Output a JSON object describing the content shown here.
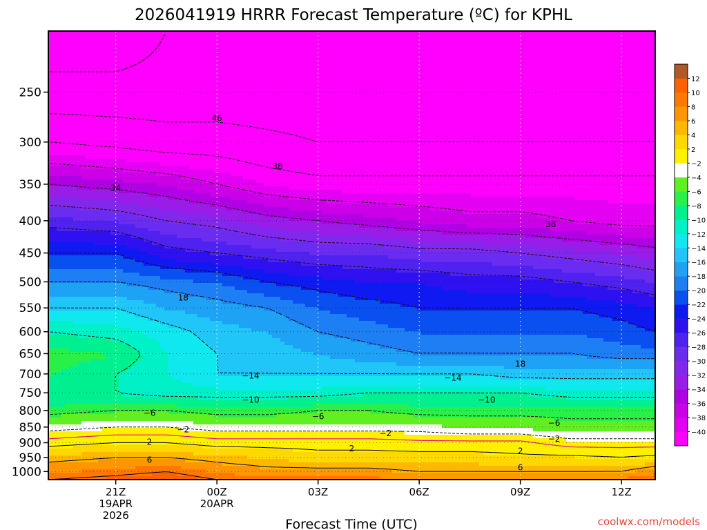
{
  "chart_data": {
    "type": "heatmap",
    "title": "2026041919 HRRR Forecast Temperature (ºC) for KPHL",
    "xlabel": "Forecast Time (UTC)",
    "ylabel": "",
    "credit": "coolwx.com/models",
    "x_ticks": [
      {
        "hour": 2,
        "lines": [
          "21Z",
          "19APR",
          "2026"
        ]
      },
      {
        "hour": 5,
        "lines": [
          "00Z",
          "20APR"
        ]
      },
      {
        "hour": 8,
        "lines": [
          "03Z"
        ]
      },
      {
        "hour": 11,
        "lines": [
          "06Z"
        ]
      },
      {
        "hour": 14,
        "lines": [
          "09Z"
        ]
      },
      {
        "hour": 17,
        "lines": [
          "12Z"
        ]
      }
    ],
    "x_range_hours": [
      0,
      18
    ],
    "y_ticks_hpa": [
      250,
      300,
      350,
      400,
      450,
      500,
      550,
      600,
      650,
      700,
      750,
      800,
      850,
      900,
      950,
      1000
    ],
    "y_range_hpa": [
      200,
      1030
    ],
    "y_scale": "log-pressure",
    "colorbar": {
      "unit": "ºC",
      "levels": [
        -40,
        -38,
        -36,
        -34,
        -32,
        -30,
        -28,
        -26,
        -24,
        -22,
        -20,
        -18,
        -16,
        -14,
        -12,
        -10,
        -8,
        -6,
        -4,
        -2,
        2,
        4,
        6,
        8,
        10,
        12
      ],
      "colors": [
        "#ff00ff",
        "#e400f2",
        "#cc00e8",
        "#b000e4",
        "#9a1ce8",
        "#8228ec",
        "#6a2cf0",
        "#4f22f0",
        "#2e10f0",
        "#0f1af2",
        "#0a50f0",
        "#1e7ef4",
        "#1ea2f6",
        "#20c6f8",
        "#10e8f0",
        "#00f0c8",
        "#00f090",
        "#28f048",
        "#60f020",
        "#ffffff",
        "#fff000",
        "#ffd800",
        "#ffb800",
        "#ff9600",
        "#ff7800",
        "#ff6000",
        "#b05a28"
      ]
    },
    "x_hours": [
      0,
      2,
      3.5,
      5,
      6.5,
      8,
      9.5,
      11,
      12.5,
      14,
      15.5,
      17,
      18
    ],
    "temperature_profiles": [
      {
        "p": 200,
        "t": [
          -52,
          -52,
          -50,
          -50,
          -50,
          -50,
          -50,
          -50,
          -50,
          -50,
          -50,
          -50,
          -50
        ]
      },
      {
        "p": 250,
        "t": [
          -49,
          -49,
          -49,
          -49,
          -49,
          -49,
          -49,
          -49,
          -49,
          -49,
          -49,
          -49,
          -49
        ]
      },
      {
        "p": 300,
        "t": [
          -42,
          -43,
          -44,
          -44,
          -45,
          -46,
          -46,
          -46,
          -46,
          -46,
          -46,
          -46,
          -46
        ]
      },
      {
        "p": 350,
        "t": [
          -34,
          -35,
          -36,
          -38,
          -40,
          -41,
          -41,
          -41,
          -41,
          -41,
          -41,
          -41,
          -41
        ]
      },
      {
        "p": 400,
        "t": [
          -27,
          -28,
          -30,
          -31,
          -33,
          -34,
          -35,
          -36,
          -37,
          -37,
          -38,
          -39,
          -39
        ]
      },
      {
        "p": 450,
        "t": [
          -22,
          -22,
          -25,
          -26,
          -27,
          -28,
          -28,
          -29,
          -29,
          -30,
          -31,
          -32,
          -33
        ]
      },
      {
        "p": 500,
        "t": [
          -18,
          -18,
          -19,
          -20,
          -22,
          -23,
          -24,
          -24,
          -25,
          -25,
          -26,
          -27,
          -28
        ]
      },
      {
        "p": 550,
        "t": [
          -14,
          -14,
          -16,
          -17,
          -18,
          -20,
          -21,
          -22,
          -22,
          -22,
          -22,
          -23,
          -24
        ]
      },
      {
        "p": 600,
        "t": [
          -10,
          -11,
          -13,
          -15,
          -16,
          -18,
          -19,
          -20,
          -20,
          -20,
          -20,
          -21,
          -22
        ]
      },
      {
        "p": 650,
        "t": [
          -7,
          -8,
          -12,
          -14,
          -15,
          -16,
          -17,
          -18,
          -18,
          -18,
          -18,
          -19,
          -19
        ]
      },
      {
        "p": 700,
        "t": [
          -8,
          -10,
          -12,
          -14,
          -14,
          -14,
          -14,
          -14,
          -14,
          -15,
          -15,
          -15,
          -15
        ]
      },
      {
        "p": 750,
        "t": [
          -10,
          -10,
          -11,
          -11,
          -11,
          -11,
          -10,
          -10,
          -10,
          -10,
          -11,
          -11,
          -11
        ]
      },
      {
        "p": 800,
        "t": [
          -7,
          -6,
          -6,
          -7,
          -7,
          -6,
          -6,
          -7,
          -7,
          -7,
          -7,
          -7,
          -7
        ]
      },
      {
        "p": 850,
        "t": [
          -3,
          -2,
          -2,
          -3,
          -3,
          -3,
          -3,
          -3,
          -4,
          -4,
          -5,
          -5,
          -5
        ]
      },
      {
        "p": 900,
        "t": [
          1,
          2,
          2,
          1,
          1,
          1,
          1,
          0.5,
          0.5,
          0.5,
          -1,
          -1,
          -1
        ]
      },
      {
        "p": 950,
        "t": [
          5,
          6,
          6,
          5,
          4,
          3,
          3,
          3,
          3,
          2.5,
          2.5,
          2,
          2.5
        ]
      },
      {
        "p": 1000,
        "t": [
          8,
          9,
          10,
          8,
          7,
          7,
          7,
          6,
          6,
          6,
          6,
          6,
          8
        ]
      },
      {
        "p": 1030,
        "t": [
          10,
          11,
          12,
          10,
          9,
          9,
          9,
          8,
          8,
          8,
          8,
          9,
          10
        ]
      }
    ],
    "contour_labels": [
      {
        "value": "46",
        "hour": 5.0,
        "p": 275
      },
      {
        "value": "38",
        "hour": 6.8,
        "p": 328
      },
      {
        "value": "34",
        "hour": 2.0,
        "p": 355
      },
      {
        "value": "38",
        "hour": 14.9,
        "p": 405
      },
      {
        "value": "18",
        "hour": 4.0,
        "p": 530
      },
      {
        "value": "18",
        "hour": 14.0,
        "p": 675
      },
      {
        "value": "−14",
        "hour": 6.0,
        "p": 705
      },
      {
        "value": "−14",
        "hour": 12.0,
        "p": 710
      },
      {
        "value": "−10",
        "hour": 6.0,
        "p": 770
      },
      {
        "value": "−10",
        "hour": 13.0,
        "p": 770
      },
      {
        "value": "−6",
        "hour": 3.0,
        "p": 808
      },
      {
        "value": "−6",
        "hour": 8.0,
        "p": 818
      },
      {
        "value": "−6",
        "hour": 15.0,
        "p": 838
      },
      {
        "value": "−2",
        "hour": 4.0,
        "p": 858
      },
      {
        "value": "−2",
        "hour": 10.0,
        "p": 870
      },
      {
        "value": "−2",
        "hour": 15.0,
        "p": 888
      },
      {
        "value": "2",
        "hour": 3.0,
        "p": 898
      },
      {
        "value": "2",
        "hour": 9.0,
        "p": 920
      },
      {
        "value": "2",
        "hour": 14.0,
        "p": 928
      },
      {
        "value": "6",
        "hour": 3.0,
        "p": 958
      },
      {
        "value": "6",
        "hour": 14.0,
        "p": 985
      }
    ]
  }
}
